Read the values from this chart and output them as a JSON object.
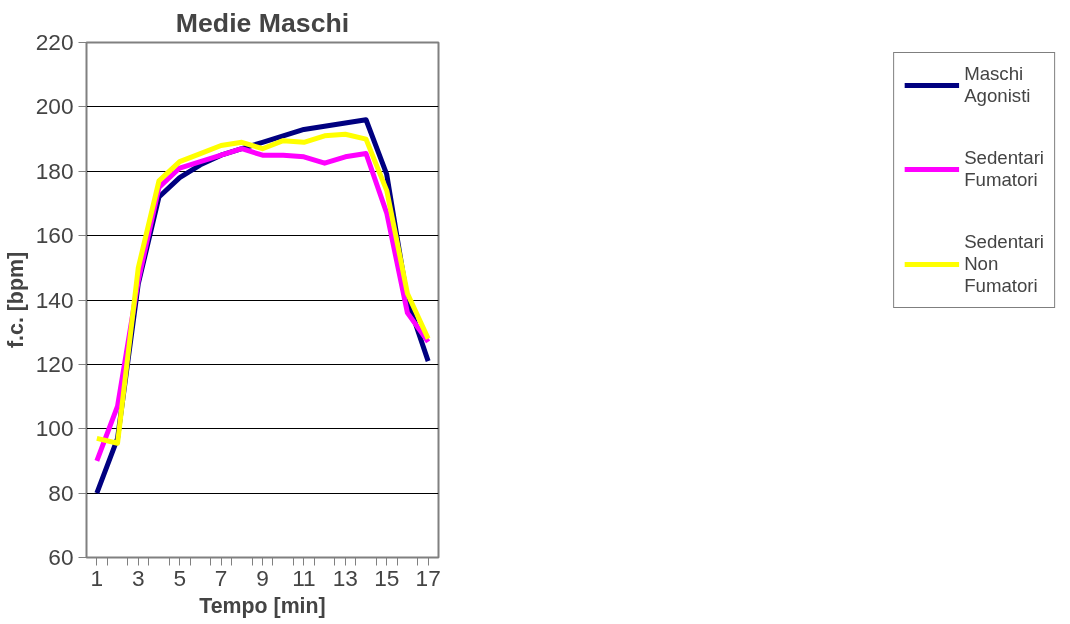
{
  "chart_data": {
    "type": "line",
    "title": "Medie Maschi",
    "xlabel": "Tempo [min]",
    "ylabel": "f.c. [bpm]",
    "x": [
      1,
      2,
      3,
      4,
      5,
      6,
      7,
      8,
      9,
      10,
      11,
      12,
      13,
      14,
      15,
      16,
      17
    ],
    "xlim": [
      0.5,
      17.5
    ],
    "xticks": [
      1,
      3,
      5,
      7,
      9,
      11,
      13,
      15,
      17,
      {
        "value": 1.5,
        "label": null
      },
      {
        "value": 2.5,
        "label": null
      },
      {
        "value": 3.5,
        "label": null
      },
      {
        "value": 4.5,
        "label": null
      },
      {
        "value": 5.5,
        "label": null
      },
      {
        "value": 6.5,
        "label": null
      },
      {
        "value": 7.5,
        "label": null
      },
      {
        "value": 8.5,
        "label": null
      },
      {
        "value": 9.5,
        "label": null
      },
      {
        "value": 10.5,
        "label": null
      },
      {
        "value": 11.5,
        "label": null
      },
      {
        "value": 12.5,
        "label": null
      },
      {
        "value": 13.5,
        "label": null
      },
      {
        "value": 14.5,
        "label": null
      },
      {
        "value": 15.5,
        "label": null
      },
      {
        "value": 16.5,
        "label": null
      }
    ],
    "ylim": [
      60,
      220
    ],
    "yticks": [
      60,
      80,
      100,
      120,
      140,
      160,
      180,
      200,
      220
    ],
    "grid": "y",
    "legend": "right",
    "marker": "none",
    "line_style": "solid",
    "series": [
      {
        "name": "Maschi Agonisti",
        "color": "#000080",
        "values": [
          80,
          97,
          145,
          172,
          178,
          182,
          185,
          187,
          189,
          191,
          193,
          194,
          195,
          196,
          179,
          140,
          121
        ]
      },
      {
        "name": "Sedentari Fumatori",
        "color": "#ff00ff",
        "values": [
          90,
          107,
          146,
          175,
          181,
          183,
          185,
          187,
          185,
          185,
          184.5,
          182.5,
          184.5,
          185.5,
          167,
          136,
          127
        ]
      },
      {
        "name": "Sedentari Non Fumatori",
        "color": "#ffff00",
        "values": [
          97,
          95.5,
          150,
          177,
          183,
          185.5,
          188,
          189,
          187,
          189.5,
          189,
          191,
          191.5,
          190,
          174,
          142,
          128
        ]
      }
    ]
  }
}
